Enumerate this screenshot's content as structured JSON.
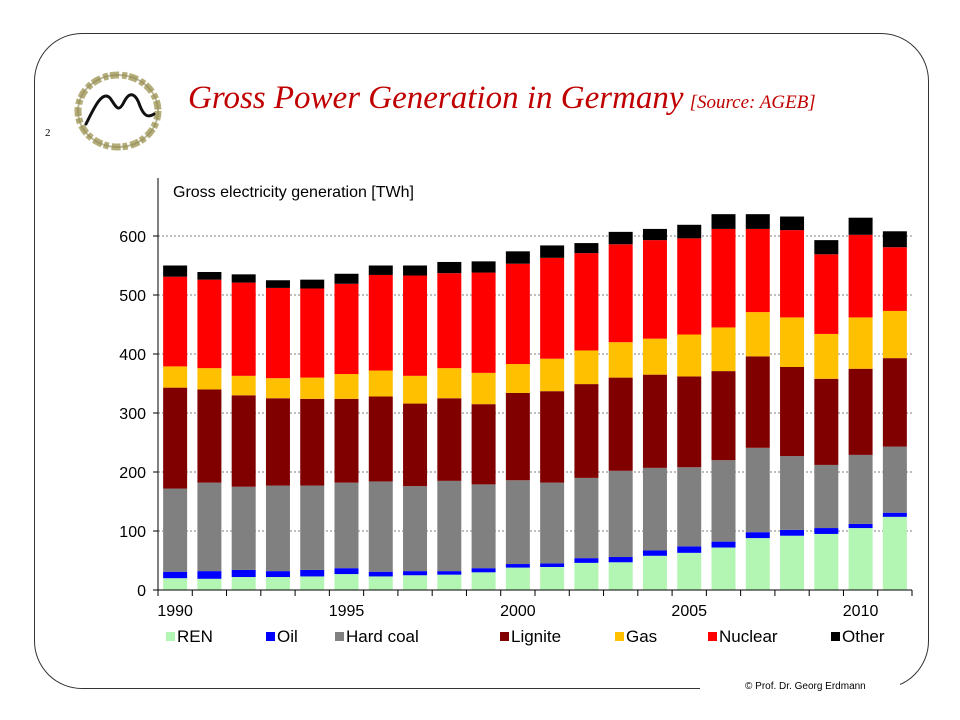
{
  "slide": {
    "number": "2",
    "title": "Gross Power Generation in Germany",
    "source": "[Source: AGEB]",
    "copyright": "© Prof. Dr. Georg Erdmann",
    "logo_icon": "mountain-circle-logo"
  },
  "colors": {
    "title": "#c00000",
    "REN": "#b3f5b3",
    "Oil": "#0000ff",
    "Hard coal": "#808080",
    "Lignite": "#800000",
    "Gas": "#ffc000",
    "Nuclear": "#ff0000",
    "Other": "#000000"
  },
  "chart_data": {
    "type": "bar",
    "stacked": true,
    "title": "",
    "ylabel": "Gross electricity generation [TWh]",
    "xlabel": "",
    "ylim": [
      0,
      700
    ],
    "yticks": [
      0,
      100,
      200,
      300,
      400,
      500,
      600
    ],
    "grid": true,
    "legend": "bottom",
    "categories": [
      "1990",
      "1991",
      "1992",
      "1993",
      "1994",
      "1995",
      "1996",
      "1997",
      "1998",
      "1999",
      "2000",
      "2001",
      "2002",
      "2003",
      "2004",
      "2005",
      "2006",
      "2007",
      "2008",
      "2009",
      "2010",
      "2011"
    ],
    "xtick_labels": [
      "1990",
      "1995",
      "2000",
      "2005",
      "2010"
    ],
    "series": [
      {
        "name": "REN",
        "values": [
          20,
          19,
          22,
          22,
          23,
          27,
          23,
          25,
          26,
          30,
          38,
          39,
          46,
          47,
          58,
          63,
          72,
          88,
          92,
          95,
          105,
          124
        ]
      },
      {
        "name": "Oil",
        "values": [
          11,
          13,
          12,
          10,
          11,
          10,
          8,
          7,
          6,
          7,
          6,
          6,
          8,
          9,
          9,
          11,
          10,
          10,
          10,
          10,
          7,
          7
        ]
      },
      {
        "name": "Hard coal",
        "values": [
          141,
          150,
          141,
          145,
          143,
          145,
          153,
          144,
          153,
          142,
          142,
          137,
          136,
          146,
          140,
          134,
          138,
          143,
          125,
          107,
          117,
          112
        ]
      },
      {
        "name": "Lignite",
        "values": [
          171,
          158,
          155,
          148,
          147,
          142,
          144,
          140,
          140,
          136,
          148,
          155,
          159,
          158,
          158,
          154,
          151,
          155,
          151,
          146,
          146,
          150
        ]
      },
      {
        "name": "Gas",
        "values": [
          36,
          36,
          33,
          34,
          36,
          42,
          44,
          47,
          51,
          53,
          49,
          55,
          57,
          60,
          61,
          71,
          74,
          75,
          84,
          76,
          87,
          80
        ]
      },
      {
        "name": "Nuclear",
        "values": [
          152,
          150,
          158,
          153,
          151,
          153,
          162,
          170,
          161,
          170,
          170,
          171,
          165,
          166,
          167,
          163,
          167,
          141,
          148,
          135,
          140,
          108
        ]
      },
      {
        "name": "Other",
        "values": [
          19,
          13,
          14,
          13,
          15,
          17,
          16,
          17,
          19,
          19,
          21,
          21,
          17,
          21,
          19,
          23,
          25,
          25,
          23,
          24,
          29,
          27
        ]
      }
    ]
  }
}
